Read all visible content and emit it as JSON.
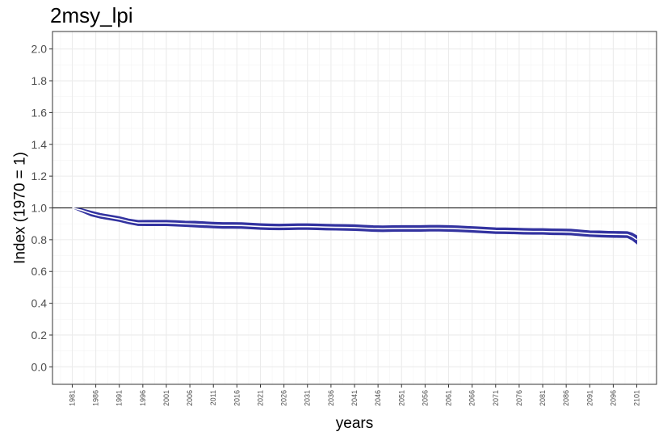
{
  "chart_data": {
    "type": "line",
    "title": "2msy_lpi",
    "xlabel": "years",
    "ylabel": "Index (1970 = 1)",
    "xlim": [
      1976.8,
      2105.2
    ],
    "ylim": [
      -0.11,
      2.11
    ],
    "yticks": [
      0.0,
      0.2,
      0.4,
      0.6,
      0.8,
      1.0,
      1.2,
      1.4,
      1.6,
      1.8,
      2.0
    ],
    "xticks": [
      1981,
      1986,
      1991,
      1996,
      2001,
      2006,
      2011,
      2016,
      2021,
      2026,
      2031,
      2036,
      2041,
      2046,
      2051,
      2056,
      2061,
      2066,
      2071,
      2076,
      2081,
      2086,
      2091,
      2096,
      2101
    ],
    "reference_line": 1.0,
    "grid": true,
    "series": [
      {
        "color": "#3333a0",
        "x": [
          1981,
          1983,
          1985,
          1987,
          1989,
          1991,
          1993,
          1995,
          1997,
          1999,
          2001,
          2003,
          2005,
          2007,
          2009,
          2011,
          2013,
          2015,
          2017,
          2019,
          2021,
          2023,
          2025,
          2027,
          2029,
          2031,
          2033,
          2035,
          2037,
          2039,
          2041,
          2043,
          2045,
          2047,
          2049,
          2051,
          2053,
          2055,
          2057,
          2059,
          2061,
          2063,
          2065,
          2067,
          2069,
          2071,
          2073,
          2075,
          2077,
          2079,
          2081,
          2083,
          2085,
          2087,
          2089,
          2091,
          2093,
          2095,
          2097,
          2099,
          2100,
          2101
        ],
        "mean": [
          1.0,
          0.985,
          0.965,
          0.95,
          0.94,
          0.93,
          0.915,
          0.905,
          0.905,
          0.905,
          0.905,
          0.903,
          0.9,
          0.898,
          0.895,
          0.892,
          0.89,
          0.89,
          0.889,
          0.886,
          0.883,
          0.881,
          0.88,
          0.881,
          0.882,
          0.882,
          0.881,
          0.879,
          0.878,
          0.877,
          0.876,
          0.873,
          0.87,
          0.869,
          0.87,
          0.871,
          0.871,
          0.871,
          0.872,
          0.872,
          0.871,
          0.869,
          0.866,
          0.863,
          0.86,
          0.857,
          0.856,
          0.855,
          0.853,
          0.852,
          0.852,
          0.85,
          0.849,
          0.848,
          0.843,
          0.838,
          0.836,
          0.834,
          0.833,
          0.832,
          0.82,
          0.8
        ],
        "lower": [
          1.0,
          0.975,
          0.95,
          0.935,
          0.925,
          0.915,
          0.9,
          0.889,
          0.888,
          0.888,
          0.888,
          0.886,
          0.883,
          0.88,
          0.877,
          0.874,
          0.872,
          0.872,
          0.871,
          0.868,
          0.865,
          0.863,
          0.862,
          0.863,
          0.864,
          0.864,
          0.863,
          0.861,
          0.86,
          0.859,
          0.858,
          0.855,
          0.852,
          0.851,
          0.852,
          0.853,
          0.853,
          0.853,
          0.854,
          0.854,
          0.853,
          0.851,
          0.848,
          0.845,
          0.842,
          0.839,
          0.838,
          0.837,
          0.835,
          0.834,
          0.834,
          0.832,
          0.831,
          0.83,
          0.825,
          0.82,
          0.817,
          0.815,
          0.814,
          0.813,
          0.798,
          0.775
        ],
        "upper": [
          1.0,
          0.995,
          0.98,
          0.965,
          0.955,
          0.945,
          0.93,
          0.921,
          0.922,
          0.922,
          0.922,
          0.92,
          0.917,
          0.916,
          0.913,
          0.91,
          0.908,
          0.908,
          0.907,
          0.904,
          0.901,
          0.899,
          0.898,
          0.899,
          0.9,
          0.9,
          0.899,
          0.897,
          0.896,
          0.895,
          0.894,
          0.891,
          0.888,
          0.887,
          0.888,
          0.889,
          0.889,
          0.889,
          0.89,
          0.89,
          0.889,
          0.887,
          0.884,
          0.881,
          0.878,
          0.875,
          0.874,
          0.873,
          0.871,
          0.87,
          0.87,
          0.868,
          0.867,
          0.866,
          0.861,
          0.856,
          0.855,
          0.853,
          0.852,
          0.851,
          0.842,
          0.825
        ]
      }
    ]
  }
}
